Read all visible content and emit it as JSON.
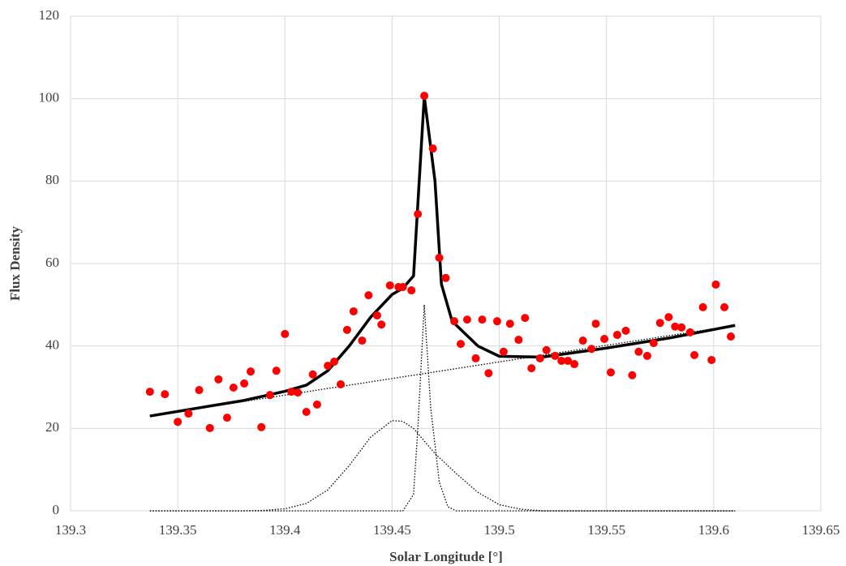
{
  "chart_data": {
    "type": "scatter",
    "x_label": "Solar Longitude [°]",
    "y_label": "Flux Density",
    "xlim": [
      139.3,
      139.65
    ],
    "xticks": [
      139.3,
      139.35,
      139.4,
      139.45,
      139.5,
      139.55,
      139.6,
      139.65
    ],
    "ylim": [
      0,
      120
    ],
    "yticks": [
      0,
      20,
      40,
      60,
      80,
      100,
      120
    ],
    "grid": true,
    "series": [
      {
        "type": "scatter",
        "color": "#ff0000",
        "x": [
          139.337,
          139.344,
          139.35,
          139.355,
          139.36,
          139.365,
          139.369,
          139.373,
          139.376,
          139.381,
          139.384,
          139.389,
          139.393,
          139.396,
          139.4,
          139.403,
          139.406,
          139.41,
          139.413,
          139.415,
          139.42,
          139.423,
          139.426,
          139.429,
          139.432,
          139.436,
          139.439,
          139.443,
          139.445,
          139.449,
          139.453,
          139.455,
          139.459,
          139.462,
          139.465,
          139.469,
          139.472,
          139.475,
          139.479,
          139.482,
          139.485,
          139.489,
          139.492,
          139.495,
          139.499,
          139.502,
          139.505,
          139.509,
          139.512,
          139.515,
          139.519,
          139.522,
          139.526,
          139.529,
          139.532,
          139.535,
          139.539,
          139.543,
          139.545,
          139.549,
          139.552,
          139.555,
          139.559,
          139.562,
          139.565,
          139.569,
          139.572,
          139.575,
          139.579,
          139.582,
          139.585,
          139.589,
          139.591,
          139.595,
          139.599,
          139.601,
          139.605,
          139.608
        ],
        "values": [
          28.9,
          28.3,
          21.6,
          23.6,
          29.3,
          20.1,
          31.9,
          22.6,
          29.9,
          30.9,
          33.8,
          20.3,
          28.1,
          34.0,
          42.9,
          28.9,
          28.7,
          24.0,
          33.1,
          25.8,
          35.2,
          36.2,
          30.7,
          43.9,
          48.4,
          41.3,
          52.3,
          47.4,
          45.2,
          54.7,
          54.3,
          54.3,
          53.5,
          72.0,
          100.7,
          87.9,
          61.4,
          56.5,
          46.0,
          40.5,
          46.4,
          37.0,
          46.4,
          33.4,
          46.0,
          38.6,
          45.4,
          41.5,
          46.8,
          34.6,
          37.0,
          39.0,
          37.6,
          36.4,
          36.4,
          35.6,
          41.3,
          39.3,
          45.4,
          41.7,
          33.6,
          42.7,
          43.7,
          32.9,
          38.6,
          37.6,
          40.7,
          45.6,
          47.0,
          44.7,
          44.5,
          43.3,
          37.8,
          49.4,
          36.6,
          54.9,
          49.4,
          42.3
        ]
      },
      {
        "type": "line",
        "style": "dotted",
        "color": "#000000",
        "x": [
          139.337,
          139.61
        ],
        "values": [
          23,
          45
        ]
      },
      {
        "type": "line",
        "style": "dotted",
        "color": "#000000",
        "x": [
          139.337,
          139.38,
          139.39,
          139.4,
          139.41,
          139.42,
          139.43,
          139.44,
          139.45,
          139.455,
          139.46,
          139.47,
          139.48,
          139.49,
          139.5,
          139.51,
          139.52,
          139.61
        ],
        "values": [
          0,
          0,
          0.1,
          0.5,
          1.8,
          5.1,
          11,
          17.9,
          21.9,
          21.7,
          20,
          13.9,
          9,
          4.5,
          1.5,
          0.4,
          0,
          0
        ]
      },
      {
        "type": "line",
        "style": "dotted",
        "color": "#000000",
        "x": [
          139.337,
          139.455,
          139.46,
          139.462,
          139.465,
          139.468,
          139.472,
          139.476,
          139.48,
          139.61
        ],
        "values": [
          0,
          0,
          4,
          20,
          50,
          25,
          7,
          1,
          0,
          0
        ]
      },
      {
        "type": "line",
        "style": "solid",
        "color": "#000000",
        "x": [
          139.337,
          139.36,
          139.38,
          139.4,
          139.41,
          139.42,
          139.43,
          139.44,
          139.45,
          139.455,
          139.46,
          139.465,
          139.47,
          139.473,
          139.478,
          139.49,
          139.5,
          139.52,
          139.55,
          139.58,
          139.61
        ],
        "values": [
          23,
          25,
          26.7,
          29,
          30.5,
          34,
          40,
          47,
          52.5,
          54,
          57,
          100.5,
          80,
          55,
          46,
          40,
          37.5,
          37.3,
          39.5,
          42,
          45
        ]
      }
    ]
  }
}
